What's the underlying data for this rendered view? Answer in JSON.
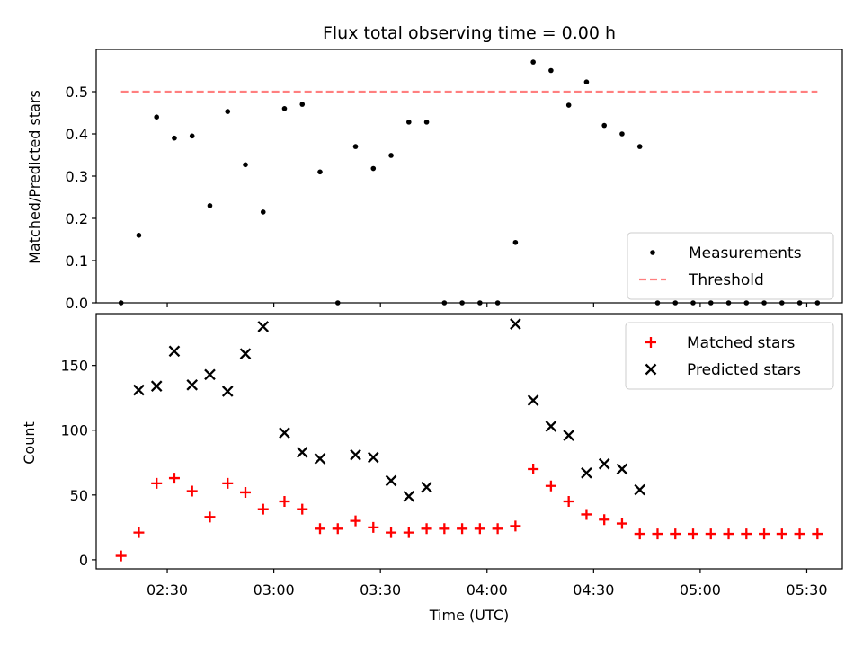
{
  "title": "Flux total observing time = 0.00 h",
  "chart_data": [
    {
      "type": "scatter",
      "panel": "top",
      "title": "Flux total observing time = 0.00 h",
      "xlabel": "",
      "ylabel": "Matched/Predicted stars",
      "ylim": [
        0,
        0.6
      ],
      "yticks": [
        0.0,
        0.1,
        0.2,
        0.3,
        0.4,
        0.5
      ],
      "ytick_labels": [
        "0.0",
        "0.1",
        "0.2",
        "0.3",
        "0.4",
        "0.5"
      ],
      "legend_position": "lower right",
      "series": [
        {
          "name": "Measurements",
          "marker": "dot",
          "color": "#000000",
          "points": [
            [
              "02:17",
              0.0
            ],
            [
              "02:22",
              0.16
            ],
            [
              "02:27",
              0.44
            ],
            [
              "02:32",
              0.39
            ],
            [
              "02:37",
              0.395
            ],
            [
              "02:42",
              0.23
            ],
            [
              "02:47",
              0.453
            ],
            [
              "02:52",
              0.327
            ],
            [
              "02:57",
              0.215
            ],
            [
              "03:03",
              0.46
            ],
            [
              "03:08",
              0.47
            ],
            [
              "03:13",
              0.31
            ],
            [
              "03:18",
              0.0
            ],
            [
              "03:23",
              0.37
            ],
            [
              "03:28",
              0.318
            ],
            [
              "03:33",
              0.349
            ],
            [
              "03:38",
              0.428
            ],
            [
              "03:43",
              0.428
            ],
            [
              "03:48",
              0.0
            ],
            [
              "03:53",
              0.0
            ],
            [
              "03:58",
              0.0
            ],
            [
              "04:03",
              0.0
            ],
            [
              "04:08",
              0.143
            ],
            [
              "04:13",
              0.57
            ],
            [
              "04:18",
              0.55
            ],
            [
              "04:23",
              0.468
            ],
            [
              "04:28",
              0.523
            ],
            [
              "04:33",
              0.42
            ],
            [
              "04:38",
              0.4
            ],
            [
              "04:43",
              0.37
            ],
            [
              "04:48",
              0.0
            ],
            [
              "04:53",
              0.0
            ],
            [
              "04:58",
              0.0
            ],
            [
              "05:03",
              0.0
            ],
            [
              "05:08",
              0.0
            ],
            [
              "05:13",
              0.0
            ],
            [
              "05:18",
              0.0
            ],
            [
              "05:23",
              0.0
            ],
            [
              "05:28",
              0.0
            ],
            [
              "05:33",
              0.0
            ]
          ]
        },
        {
          "name": "Threshold",
          "marker": "dashed-line",
          "color": "#ff7f7f",
          "points": [
            [
              "02:17",
              0.5
            ],
            [
              "05:33",
              0.5
            ]
          ]
        }
      ]
    },
    {
      "type": "scatter",
      "panel": "bottom",
      "xlabel": "Time (UTC)",
      "ylabel": "Count",
      "ylim": [
        -7,
        190
      ],
      "yticks": [
        0,
        50,
        100,
        150
      ],
      "ytick_labels": [
        "0",
        "50",
        "100",
        "150"
      ],
      "x_range": [
        "02:10",
        "05:40"
      ],
      "xticks": [
        "02:30",
        "03:00",
        "03:30",
        "04:00",
        "04:30",
        "05:00",
        "05:30"
      ],
      "xtick_labels": [
        "02:30",
        "03:00",
        "03:30",
        "04:00",
        "04:30",
        "05:00",
        "05:30"
      ],
      "legend_position": "upper right",
      "series": [
        {
          "name": "Matched stars",
          "marker": "plus",
          "color": "#ff0000",
          "points": [
            [
              "02:17",
              3
            ],
            [
              "02:22",
              21
            ],
            [
              "02:27",
              59
            ],
            [
              "02:32",
              63
            ],
            [
              "02:37",
              53
            ],
            [
              "02:42",
              33
            ],
            [
              "02:47",
              59
            ],
            [
              "02:52",
              52
            ],
            [
              "02:57",
              39
            ],
            [
              "03:03",
              45
            ],
            [
              "03:08",
              39
            ],
            [
              "03:13",
              24
            ],
            [
              "03:18",
              24
            ],
            [
              "03:23",
              30
            ],
            [
              "03:28",
              25
            ],
            [
              "03:33",
              21
            ],
            [
              "03:38",
              21
            ],
            [
              "03:43",
              24
            ],
            [
              "03:48",
              24
            ],
            [
              "03:53",
              24
            ],
            [
              "03:58",
              24
            ],
            [
              "04:03",
              24
            ],
            [
              "04:08",
              26
            ],
            [
              "04:13",
              70
            ],
            [
              "04:18",
              57
            ],
            [
              "04:23",
              45
            ],
            [
              "04:28",
              35
            ],
            [
              "04:33",
              31
            ],
            [
              "04:38",
              28
            ],
            [
              "04:43",
              20
            ],
            [
              "04:48",
              20
            ],
            [
              "04:53",
              20
            ],
            [
              "04:58",
              20
            ],
            [
              "05:03",
              20
            ],
            [
              "05:08",
              20
            ],
            [
              "05:13",
              20
            ],
            [
              "05:18",
              20
            ],
            [
              "05:23",
              20
            ],
            [
              "05:28",
              20
            ],
            [
              "05:33",
              20
            ]
          ]
        },
        {
          "name": "Predicted stars",
          "marker": "x",
          "color": "#000000",
          "points": [
            [
              "02:22",
              131
            ],
            [
              "02:27",
              134
            ],
            [
              "02:32",
              161
            ],
            [
              "02:37",
              135
            ],
            [
              "02:42",
              143
            ],
            [
              "02:47",
              130
            ],
            [
              "02:52",
              159
            ],
            [
              "02:57",
              180
            ],
            [
              "03:03",
              98
            ],
            [
              "03:08",
              83
            ],
            [
              "03:13",
              78
            ],
            [
              "03:23",
              81
            ],
            [
              "03:28",
              79
            ],
            [
              "03:33",
              61
            ],
            [
              "03:38",
              49
            ],
            [
              "03:43",
              56
            ],
            [
              "04:08",
              182
            ],
            [
              "04:13",
              123
            ],
            [
              "04:18",
              103
            ],
            [
              "04:23",
              96
            ],
            [
              "04:28",
              67
            ],
            [
              "04:33",
              74
            ],
            [
              "04:38",
              70
            ],
            [
              "04:43",
              54
            ]
          ]
        }
      ]
    }
  ]
}
